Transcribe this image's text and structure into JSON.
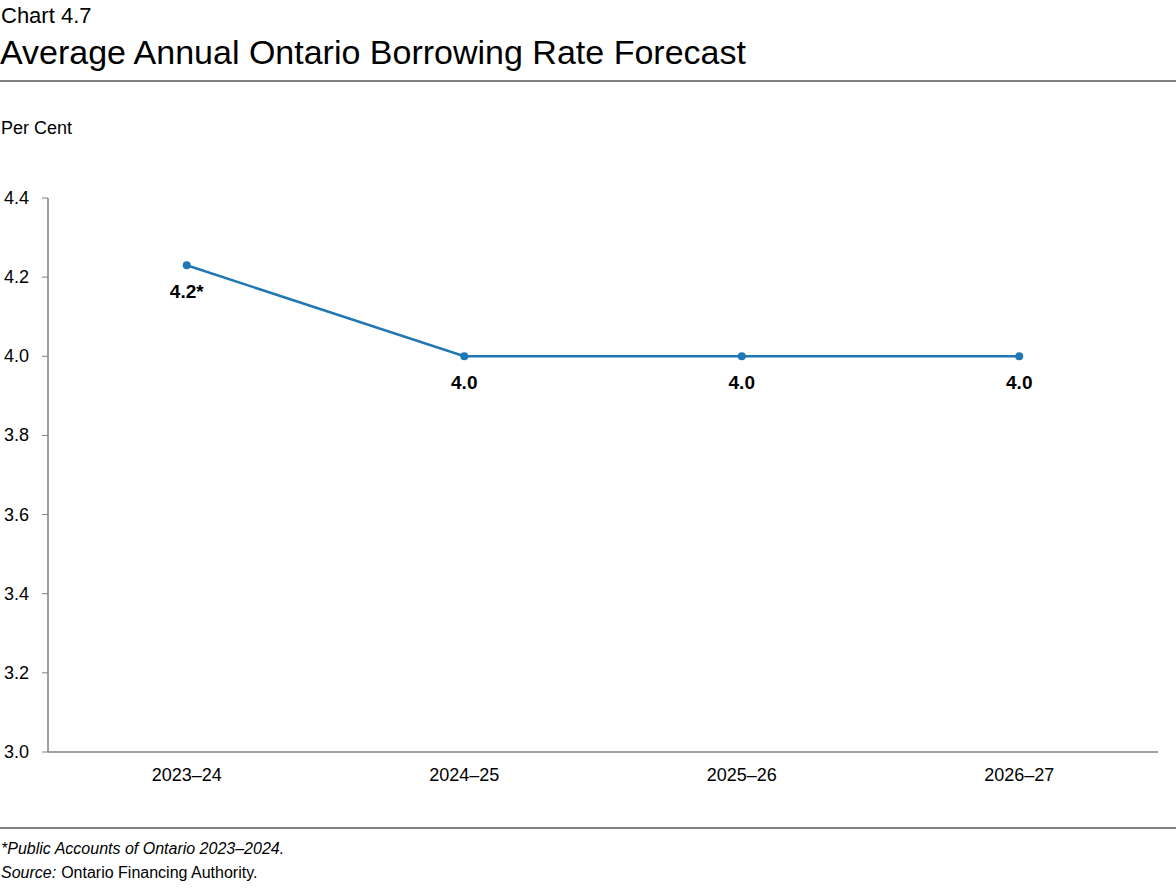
{
  "chart_data": {
    "type": "line",
    "chart_label": "Chart 4.7",
    "title": "Average Annual Ontario Borrowing Rate Forecast",
    "y_label": "Per Cent",
    "categories": [
      "2023–24",
      "2024–25",
      "2025–26",
      "2026–27"
    ],
    "values": [
      4.23,
      4.0,
      4.0,
      4.0
    ],
    "value_labels": [
      "4.2*",
      "4.0",
      "4.0",
      "4.0"
    ],
    "data_labels": true,
    "color": "#1f77b4",
    "marker": "circle",
    "grid": false,
    "ylim": [
      3.0,
      4.4
    ],
    "yticks": [
      {
        "value": 3.0,
        "label": "3.0"
      },
      3.2,
      3.4,
      3.6,
      3.8,
      {
        "value": 4.0,
        "label": "4.0"
      },
      4.2,
      4.4
    ],
    "footnote": "*Public Accounts of Ontario 2023–2024.",
    "source_label": "Source:",
    "source": "Ontario Financing Authority."
  }
}
